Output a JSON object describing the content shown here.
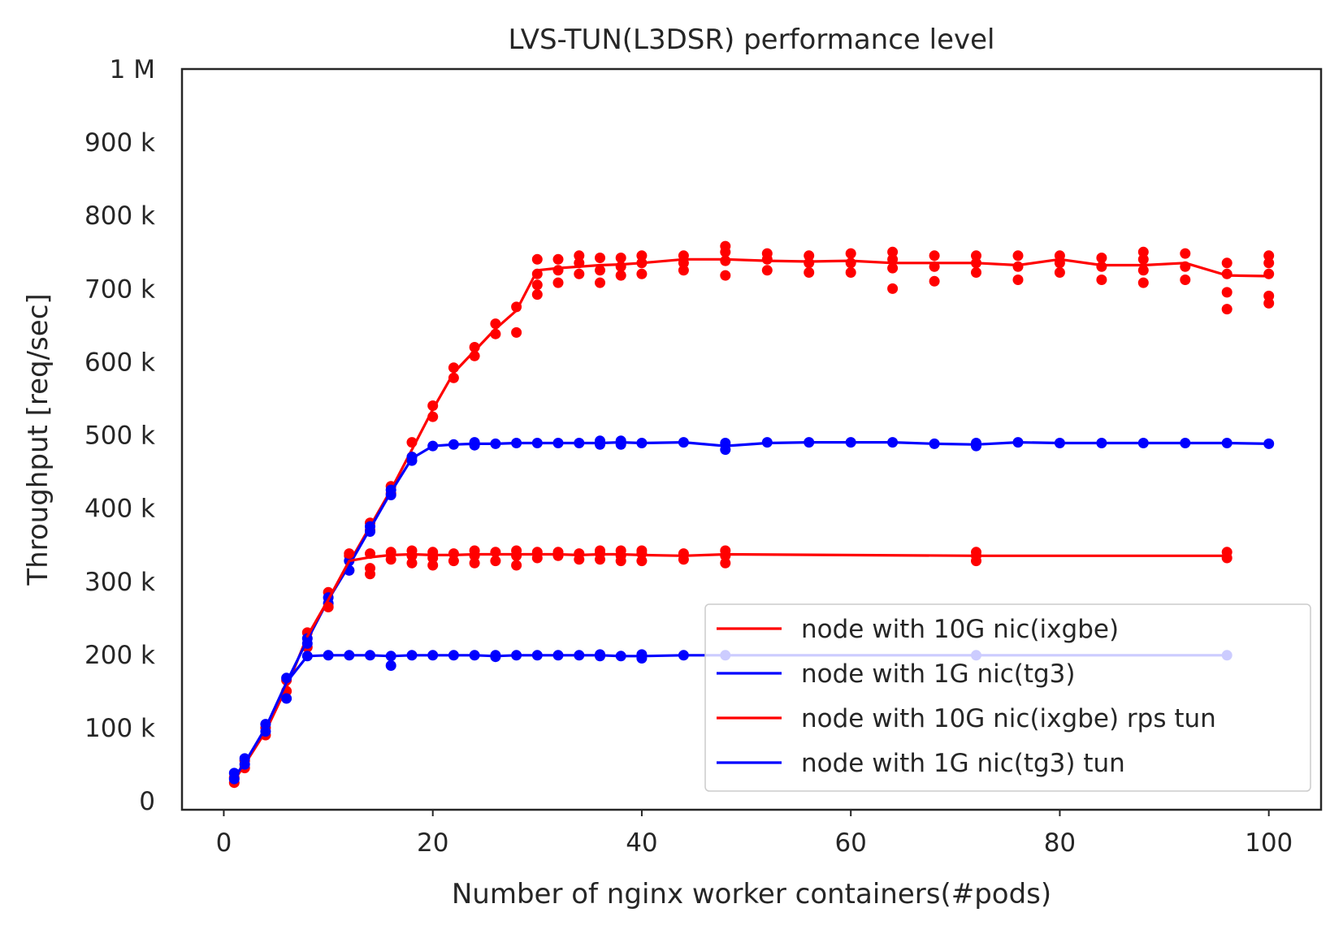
{
  "chart_data": {
    "type": "line",
    "title": "LVS-TUN(L3DSR) performance level",
    "xlabel": "Number of nginx worker containers(#pods)",
    "ylabel": "Throughput [req/sec]",
    "xlim": [
      -4,
      105
    ],
    "ylim": [
      -12000,
      1000000
    ],
    "xticks": [
      {
        "value": 0,
        "label": "0"
      },
      {
        "value": 20,
        "label": "20"
      },
      {
        "value": 40,
        "label": "40"
      },
      {
        "value": 60,
        "label": "60"
      },
      {
        "value": 80,
        "label": "80"
      },
      {
        "value": 100,
        "label": "100"
      }
    ],
    "yticks": [
      {
        "value": 0,
        "label": "0"
      },
      {
        "value": 100000,
        "label": "100 k"
      },
      {
        "value": 200000,
        "label": "200 k"
      },
      {
        "value": 300000,
        "label": "300 k"
      },
      {
        "value": 400000,
        "label": "400 k"
      },
      {
        "value": 500000,
        "label": "500 k"
      },
      {
        "value": 600000,
        "label": "600 k"
      },
      {
        "value": 700000,
        "label": "700 k"
      },
      {
        "value": 800000,
        "label": "800 k"
      },
      {
        "value": 900000,
        "label": "900 k"
      },
      {
        "value": 1000000,
        "label": "1 M"
      }
    ],
    "grid": false,
    "legend_position": "lower-right",
    "series": [
      {
        "name": "node with 10G nic(ixgbe)",
        "color": "#ff0000",
        "x": [
          1,
          2,
          4,
          6,
          8,
          10,
          12,
          14,
          16,
          18,
          20,
          22,
          24,
          26,
          28,
          30,
          32,
          34,
          36,
          38,
          40,
          44,
          48,
          52,
          56,
          60,
          64,
          68,
          72,
          76,
          80,
          84,
          88,
          92,
          96,
          100
        ],
        "y": [
          28000,
          50000,
          95000,
          155000,
          225000,
          275000,
          325000,
          375000,
          425000,
          480000,
          535000,
          585000,
          615000,
          645000,
          670000,
          725000,
          728000,
          730000,
          732000,
          733000,
          735000,
          740000,
          740000,
          738000,
          737000,
          738000,
          735000,
          735000,
          735000,
          732000,
          740000,
          732000,
          732000,
          735000,
          718000,
          717000
        ],
        "points": [
          [
            1,
            25000
          ],
          [
            1,
            32000
          ],
          [
            2,
            45000
          ],
          [
            2,
            55000
          ],
          [
            4,
            90000
          ],
          [
            4,
            100000
          ],
          [
            6,
            150000
          ],
          [
            6,
            165000
          ],
          [
            8,
            210000
          ],
          [
            8,
            230000
          ],
          [
            10,
            265000
          ],
          [
            10,
            285000
          ],
          [
            12,
            315000
          ],
          [
            12,
            335000
          ],
          [
            14,
            370000
          ],
          [
            14,
            380000
          ],
          [
            16,
            420000
          ],
          [
            16,
            430000
          ],
          [
            18,
            470000
          ],
          [
            18,
            490000
          ],
          [
            20,
            525000
          ],
          [
            20,
            540000
          ],
          [
            22,
            578000
          ],
          [
            22,
            592000
          ],
          [
            24,
            608000
          ],
          [
            24,
            620000
          ],
          [
            26,
            638000
          ],
          [
            26,
            652000
          ],
          [
            28,
            640000
          ],
          [
            28,
            675000
          ],
          [
            30,
            692000
          ],
          [
            30,
            705000
          ],
          [
            30,
            720000
          ],
          [
            30,
            740000
          ],
          [
            32,
            708000
          ],
          [
            32,
            725000
          ],
          [
            32,
            740000
          ],
          [
            34,
            720000
          ],
          [
            34,
            735000
          ],
          [
            34,
            745000
          ],
          [
            36,
            708000
          ],
          [
            36,
            725000
          ],
          [
            36,
            742000
          ],
          [
            38,
            718000
          ],
          [
            38,
            730000
          ],
          [
            38,
            742000
          ],
          [
            40,
            720000
          ],
          [
            40,
            735000
          ],
          [
            40,
            745000
          ],
          [
            44,
            725000
          ],
          [
            44,
            735000
          ],
          [
            44,
            745000
          ],
          [
            48,
            718000
          ],
          [
            48,
            738000
          ],
          [
            48,
            750000
          ],
          [
            48,
            758000
          ],
          [
            52,
            725000
          ],
          [
            52,
            740000
          ],
          [
            52,
            748000
          ],
          [
            56,
            722000
          ],
          [
            56,
            735000
          ],
          [
            56,
            745000
          ],
          [
            60,
            722000
          ],
          [
            60,
            735000
          ],
          [
            60,
            748000
          ],
          [
            64,
            700000
          ],
          [
            64,
            728000
          ],
          [
            64,
            740000
          ],
          [
            64,
            750000
          ],
          [
            68,
            710000
          ],
          [
            68,
            730000
          ],
          [
            68,
            745000
          ],
          [
            72,
            722000
          ],
          [
            72,
            735000
          ],
          [
            72,
            745000
          ],
          [
            76,
            712000
          ],
          [
            76,
            730000
          ],
          [
            76,
            745000
          ],
          [
            80,
            722000
          ],
          [
            80,
            735000
          ],
          [
            80,
            745000
          ],
          [
            84,
            712000
          ],
          [
            84,
            730000
          ],
          [
            84,
            742000
          ],
          [
            88,
            708000
          ],
          [
            88,
            725000
          ],
          [
            88,
            740000
          ],
          [
            88,
            750000
          ],
          [
            92,
            712000
          ],
          [
            92,
            730000
          ],
          [
            92,
            748000
          ],
          [
            96,
            672000
          ],
          [
            96,
            695000
          ],
          [
            96,
            720000
          ],
          [
            96,
            735000
          ],
          [
            100,
            680000
          ],
          [
            100,
            690000
          ],
          [
            100,
            720000
          ],
          [
            100,
            735000
          ],
          [
            100,
            745000
          ]
        ]
      },
      {
        "name": "node with 1G nic(tg3)",
        "color": "#0000ff",
        "x": [
          1,
          2,
          4,
          6,
          8,
          10,
          12,
          14,
          16,
          18,
          20,
          22,
          24,
          26,
          28,
          30,
          32,
          34,
          36,
          38,
          40,
          44,
          48,
          52,
          56,
          60,
          64,
          68,
          72,
          76,
          80,
          84,
          88,
          92,
          96,
          100
        ],
        "y": [
          32000,
          52000,
          100000,
          162000,
          220000,
          275000,
          322000,
          372000,
          422000,
          468000,
          485000,
          487000,
          488000,
          488000,
          489000,
          489000,
          489000,
          489000,
          489000,
          490000,
          489000,
          490000,
          485000,
          489000,
          490000,
          490000,
          490000,
          488000,
          487000,
          490000,
          489000,
          489000,
          489000,
          489000,
          489000,
          488000
        ],
        "points": [
          [
            1,
            30000
          ],
          [
            1,
            38000
          ],
          [
            2,
            50000
          ],
          [
            2,
            58000
          ],
          [
            4,
            95000
          ],
          [
            4,
            105000
          ],
          [
            6,
            140000
          ],
          [
            6,
            168000
          ],
          [
            8,
            215000
          ],
          [
            8,
            222000
          ],
          [
            10,
            270000
          ],
          [
            10,
            278000
          ],
          [
            12,
            315000
          ],
          [
            12,
            328000
          ],
          [
            14,
            368000
          ],
          [
            14,
            375000
          ],
          [
            16,
            418000
          ],
          [
            16,
            425000
          ],
          [
            18,
            465000
          ],
          [
            18,
            470000
          ],
          [
            20,
            485000
          ],
          [
            22,
            487000
          ],
          [
            24,
            486000
          ],
          [
            24,
            490000
          ],
          [
            26,
            488000
          ],
          [
            28,
            489000
          ],
          [
            30,
            489000
          ],
          [
            32,
            489000
          ],
          [
            34,
            489000
          ],
          [
            36,
            487000
          ],
          [
            36,
            492000
          ],
          [
            38,
            487000
          ],
          [
            38,
            492000
          ],
          [
            40,
            489000
          ],
          [
            44,
            490000
          ],
          [
            48,
            480000
          ],
          [
            48,
            489000
          ],
          [
            52,
            490000
          ],
          [
            56,
            490000
          ],
          [
            60,
            490000
          ],
          [
            64,
            490000
          ],
          [
            68,
            488000
          ],
          [
            72,
            485000
          ],
          [
            72,
            489000
          ],
          [
            76,
            490000
          ],
          [
            80,
            489000
          ],
          [
            84,
            489000
          ],
          [
            88,
            489000
          ],
          [
            92,
            489000
          ],
          [
            96,
            489000
          ],
          [
            100,
            488000
          ]
        ]
      },
      {
        "name": "node with 10G nic(ixgbe) rps tun",
        "color": "#ff0000",
        "x": [
          8,
          10,
          12,
          14,
          16,
          18,
          20,
          22,
          24,
          26,
          28,
          30,
          32,
          34,
          36,
          38,
          40,
          44,
          48,
          72,
          96
        ],
        "y": [
          225000,
          275000,
          328000,
          333000,
          336000,
          337000,
          336000,
          336000,
          337000,
          337000,
          337000,
          337000,
          337000,
          336000,
          337000,
          337000,
          336000,
          335000,
          337000,
          335000,
          335000
        ],
        "points": [
          [
            10,
            265000
          ],
          [
            12,
            338000
          ],
          [
            14,
            310000
          ],
          [
            14,
            318000
          ],
          [
            14,
            338000
          ],
          [
            16,
            330000
          ],
          [
            16,
            340000
          ],
          [
            18,
            325000
          ],
          [
            18,
            335000
          ],
          [
            18,
            342000
          ],
          [
            20,
            322000
          ],
          [
            20,
            332000
          ],
          [
            20,
            340000
          ],
          [
            22,
            328000
          ],
          [
            22,
            338000
          ],
          [
            24,
            325000
          ],
          [
            24,
            335000
          ],
          [
            24,
            342000
          ],
          [
            26,
            328000
          ],
          [
            26,
            340000
          ],
          [
            28,
            322000
          ],
          [
            28,
            335000
          ],
          [
            28,
            342000
          ],
          [
            30,
            332000
          ],
          [
            30,
            340000
          ],
          [
            32,
            335000
          ],
          [
            32,
            340000
          ],
          [
            34,
            330000
          ],
          [
            34,
            338000
          ],
          [
            36,
            330000
          ],
          [
            36,
            338000
          ],
          [
            36,
            342000
          ],
          [
            38,
            328000
          ],
          [
            38,
            335000
          ],
          [
            38,
            342000
          ],
          [
            40,
            328000
          ],
          [
            40,
            338000
          ],
          [
            40,
            342000
          ],
          [
            44,
            330000
          ],
          [
            44,
            338000
          ],
          [
            48,
            325000
          ],
          [
            48,
            335000
          ],
          [
            48,
            342000
          ],
          [
            72,
            328000
          ],
          [
            72,
            335000
          ],
          [
            72,
            340000
          ],
          [
            96,
            332000
          ],
          [
            96,
            340000
          ]
        ]
      },
      {
        "name": "node with 1G nic(tg3) tun",
        "color": "#0000ff",
        "x": [
          6,
          8,
          10,
          12,
          14,
          16,
          18,
          20,
          22,
          24,
          26,
          28,
          30,
          32,
          34,
          36,
          38,
          40,
          44,
          48,
          96
        ],
        "y": [
          162000,
          198000,
          199000,
          199000,
          199000,
          198000,
          199000,
          199000,
          199000,
          199000,
          198000,
          199000,
          199000,
          199000,
          199000,
          199000,
          198000,
          198000,
          199000,
          199000,
          199000
        ],
        "points": [
          [
            8,
            198000
          ],
          [
            10,
            199000
          ],
          [
            12,
            199000
          ],
          [
            14,
            199000
          ],
          [
            16,
            185000
          ],
          [
            16,
            198000
          ],
          [
            18,
            199000
          ],
          [
            20,
            199000
          ],
          [
            22,
            199000
          ],
          [
            24,
            199000
          ],
          [
            26,
            197000
          ],
          [
            26,
            199000
          ],
          [
            28,
            199000
          ],
          [
            30,
            199000
          ],
          [
            32,
            199000
          ],
          [
            34,
            199000
          ],
          [
            36,
            198000
          ],
          [
            36,
            200000
          ],
          [
            38,
            198000
          ],
          [
            40,
            195000
          ],
          [
            40,
            200000
          ],
          [
            44,
            199000
          ],
          [
            48,
            199000
          ],
          [
            72,
            199000
          ],
          [
            96,
            199000
          ]
        ]
      }
    ]
  }
}
